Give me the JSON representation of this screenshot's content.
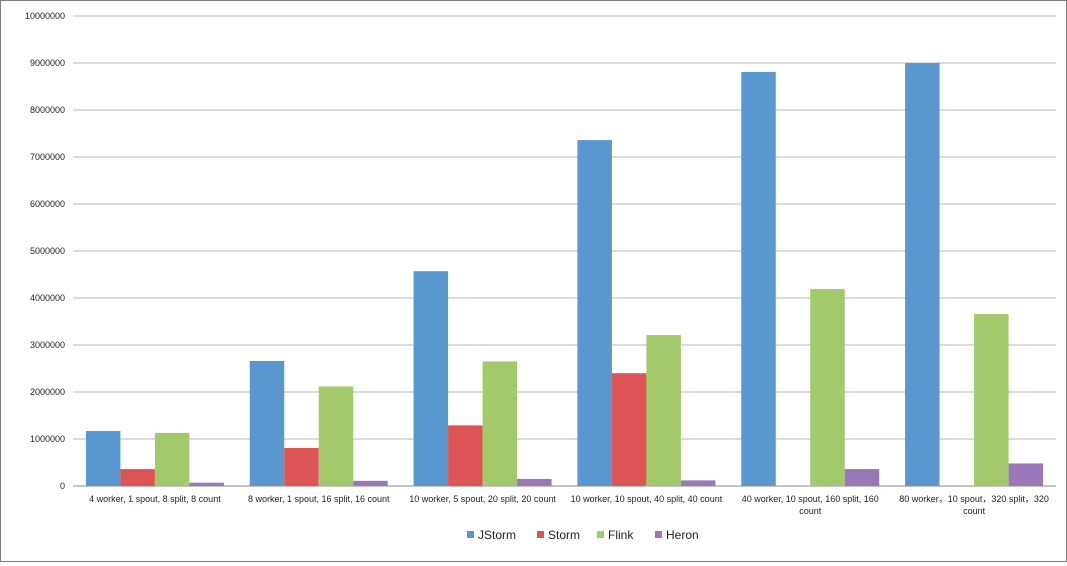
{
  "chart_data": {
    "type": "bar",
    "title": "",
    "xlabel": "",
    "ylabel": "",
    "ylim": [
      0,
      10000000
    ],
    "yticks": [
      "0",
      "1000000",
      "2000000",
      "3000000",
      "4000000",
      "5000000",
      "6000000",
      "7000000",
      "8000000",
      "9000000",
      "10000000"
    ],
    "ytick_values": [
      0,
      1000000,
      2000000,
      3000000,
      4000000,
      5000000,
      6000000,
      7000000,
      8000000,
      9000000,
      10000000
    ],
    "grid": true,
    "legend_position": "bottom",
    "categories": [
      [
        "4 worker, 1 spout, 8 split, 8 count"
      ],
      [
        "8 worker, 1 spout, 16 split, 16 count"
      ],
      [
        "10 worker, 5 spout, 20 split, 20 count"
      ],
      [
        "10 worker, 10 spout, 40 split, 40 count"
      ],
      [
        "40 worker, 10 spout, 160 split, 160",
        "count"
      ],
      [
        "80 worker，10 spout，320 split，320",
        "count"
      ]
    ],
    "series": [
      {
        "name": "JStorm",
        "color": "#5b97cf",
        "values": [
          1170000,
          2660000,
          4570000,
          7360000,
          8810000,
          9000000
        ]
      },
      {
        "name": "Storm",
        "color": "#dc5554",
        "values": [
          360000,
          810000,
          1290000,
          2400000,
          null,
          null
        ]
      },
      {
        "name": "Flink",
        "color": "#a2c96a",
        "values": [
          1130000,
          2120000,
          2650000,
          3210000,
          4190000,
          3660000
        ]
      },
      {
        "name": "Heron",
        "color": "#9a78b7",
        "values": [
          70000,
          110000,
          150000,
          120000,
          360000,
          480000
        ]
      }
    ]
  }
}
